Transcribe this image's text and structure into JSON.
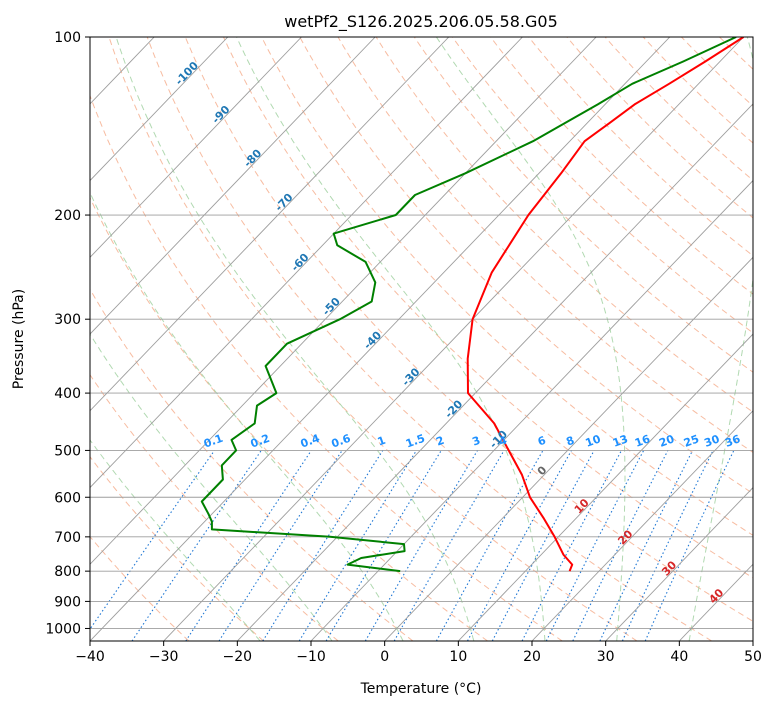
{
  "chart_data": {
    "type": "skew-t",
    "title": "wetPf2_S126.2025.206.05.58.G05",
    "xlabel": "Temperature (°C)",
    "ylabel": "Pressure (hPa)",
    "xlim": [
      -40,
      50
    ],
    "ylim": [
      1050,
      100
    ],
    "x_ticks": [
      -40,
      -30,
      -20,
      -10,
      0,
      10,
      20,
      30,
      40,
      50
    ],
    "y_ticks": [
      100,
      200,
      300,
      400,
      500,
      600,
      700,
      800,
      900,
      1000
    ],
    "grid": true,
    "series": [
      {
        "key": "temperature",
        "color": "#ff0000",
        "points": [
          [
            100,
            -30
          ],
          [
            110,
            -32
          ],
          [
            120,
            -34
          ],
          [
            130,
            -36
          ],
          [
            140,
            -37
          ],
          [
            150,
            -38
          ],
          [
            170,
            -37
          ],
          [
            200,
            -36
          ],
          [
            250,
            -33.5
          ],
          [
            300,
            -30
          ],
          [
            350,
            -25.5
          ],
          [
            400,
            -21
          ],
          [
            450,
            -13.5
          ],
          [
            500,
            -8
          ],
          [
            550,
            -3
          ],
          [
            600,
            1
          ],
          [
            650,
            5.5
          ],
          [
            700,
            9.5
          ],
          [
            750,
            13
          ],
          [
            780,
            15.5
          ],
          [
            800,
            16
          ]
        ]
      },
      {
        "key": "dewpoint",
        "color": "#008000",
        "points": [
          [
            100,
            -31
          ],
          [
            110,
            -35
          ],
          [
            120,
            -39
          ],
          [
            130,
            -41
          ],
          [
            150,
            -45
          ],
          [
            170,
            -50
          ],
          [
            185,
            -54
          ],
          [
            200,
            -54
          ],
          [
            215,
            -60
          ],
          [
            225,
            -58
          ],
          [
            240,
            -52
          ],
          [
            260,
            -48
          ],
          [
            280,
            -46
          ],
          [
            300,
            -48
          ],
          [
            330,
            -52
          ],
          [
            360,
            -52
          ],
          [
            400,
            -47
          ],
          [
            420,
            -48
          ],
          [
            450,
            -46
          ],
          [
            480,
            -47
          ],
          [
            500,
            -45
          ],
          [
            530,
            -45
          ],
          [
            560,
            -43
          ],
          [
            580,
            -43
          ],
          [
            610,
            -43
          ],
          [
            640,
            -40.5
          ],
          [
            660,
            -39
          ],
          [
            680,
            -38
          ],
          [
            700,
            -21
          ],
          [
            720,
            -10
          ],
          [
            740,
            -9
          ],
          [
            760,
            -14
          ],
          [
            780,
            -15
          ],
          [
            790,
            -11
          ],
          [
            800,
            -7
          ]
        ]
      }
    ],
    "dry_adiabats_c": [
      -30,
      -20,
      -10,
      0,
      10,
      20,
      30,
      40,
      50,
      60,
      70,
      80,
      90,
      100,
      110,
      120,
      130,
      140,
      150,
      160,
      170,
      180,
      190,
      200
    ],
    "moist_adiabats_c": [
      -20,
      -10,
      0,
      10,
      20,
      30,
      40
    ],
    "mixing_ratios": [
      "0.1",
      "0.2",
      "0.4",
      "0.6",
      "1",
      "1.5",
      "2",
      "3",
      "4",
      "6",
      "8",
      "10",
      "13",
      "16",
      "20",
      "25",
      "30",
      "36"
    ],
    "isotherm_labels_blue": [
      "-100",
      "-90",
      "-80",
      "-70",
      "-60",
      "-50",
      "-40",
      "-30",
      "-20",
      "-10"
    ],
    "isotherm_label_gray": [
      "0"
    ],
    "isotherm_labels_red": [
      "10",
      "20",
      "30",
      "40"
    ],
    "colors": {
      "temperature": "#ff0000",
      "dewpoint": "#008000",
      "isotherm": "#9e9e9e",
      "dry_adiabat": "#f4a582",
      "moist_adiabat": "#9ecf9e",
      "mixing_ratio": "#1f77d4",
      "label_blue": "#1f77b4",
      "label_red": "#d62728",
      "label_gray": "#666666",
      "mixing_label": "#1e90ff"
    }
  }
}
